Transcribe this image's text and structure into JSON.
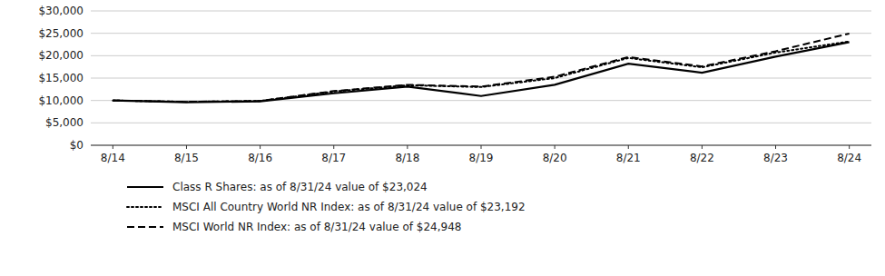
{
  "chart_data": {
    "type": "line",
    "categories": [
      "8/14",
      "8/15",
      "8/16",
      "8/17",
      "8/18",
      "8/19",
      "8/20",
      "8/21",
      "8/22",
      "8/23",
      "8/24"
    ],
    "series": [
      {
        "name": "Class R Shares: as of 8/31/24 value of $23,024",
        "color": "#000000",
        "line_style": "solid",
        "values": [
          10000,
          9600,
          9800,
          11600,
          13100,
          11000,
          13500,
          18200,
          16200,
          19800,
          23024
        ]
      },
      {
        "name": "MSCI All Country World NR Index: as of 8/31/24 value of $23,192",
        "color": "#000000",
        "line_style": "dotted",
        "values": [
          10000,
          9700,
          9900,
          12000,
          13400,
          13000,
          15000,
          19500,
          17400,
          20700,
          23192
        ]
      },
      {
        "name": "MSCI World NR Index: as of 8/31/24 value of $24,948",
        "color": "#000000",
        "line_style": "dashed",
        "values": [
          10000,
          9700,
          9900,
          12100,
          13500,
          13100,
          15300,
          19700,
          17600,
          21000,
          24948
        ]
      }
    ],
    "ylim": [
      0,
      30000
    ],
    "yticks": [
      {
        "value": 0,
        "label": "$0"
      },
      {
        "value": 5000,
        "label": "$5,000"
      },
      {
        "value": 10000,
        "label": "$10,000"
      },
      {
        "value": 15000,
        "label": "$15,000"
      },
      {
        "value": 20000,
        "label": "$20,000"
      },
      {
        "value": 25000,
        "label": "$25,000"
      },
      {
        "value": 30000,
        "label": "$30,000"
      }
    ],
    "grid": true,
    "legend": "bottom"
  }
}
